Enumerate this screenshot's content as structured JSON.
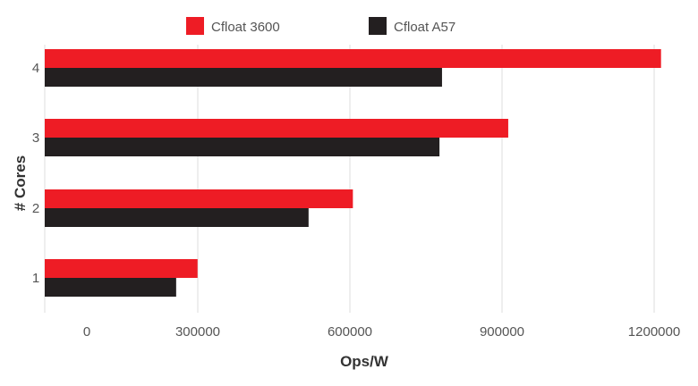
{
  "chart_data": {
    "type": "bar",
    "orientation": "horizontal",
    "categories": [
      "1",
      "2",
      "3",
      "4"
    ],
    "series": [
      {
        "name": "Cfloat 3600",
        "color": "#ee1c25",
        "values": [
          300000,
          605000,
          910000,
          1210000
        ]
      },
      {
        "name": "Cfloat A57",
        "color": "#231f20",
        "values": [
          258000,
          518000,
          775000,
          780000
        ]
      }
    ],
    "xlabel": "Ops/W",
    "ylabel": "# Cores",
    "xlim": [
      0,
      1200000
    ],
    "xticks": [
      "0",
      "300000",
      "600000",
      "900000",
      "1200000"
    ],
    "grid": "vertical",
    "legend_position": "top-center"
  }
}
